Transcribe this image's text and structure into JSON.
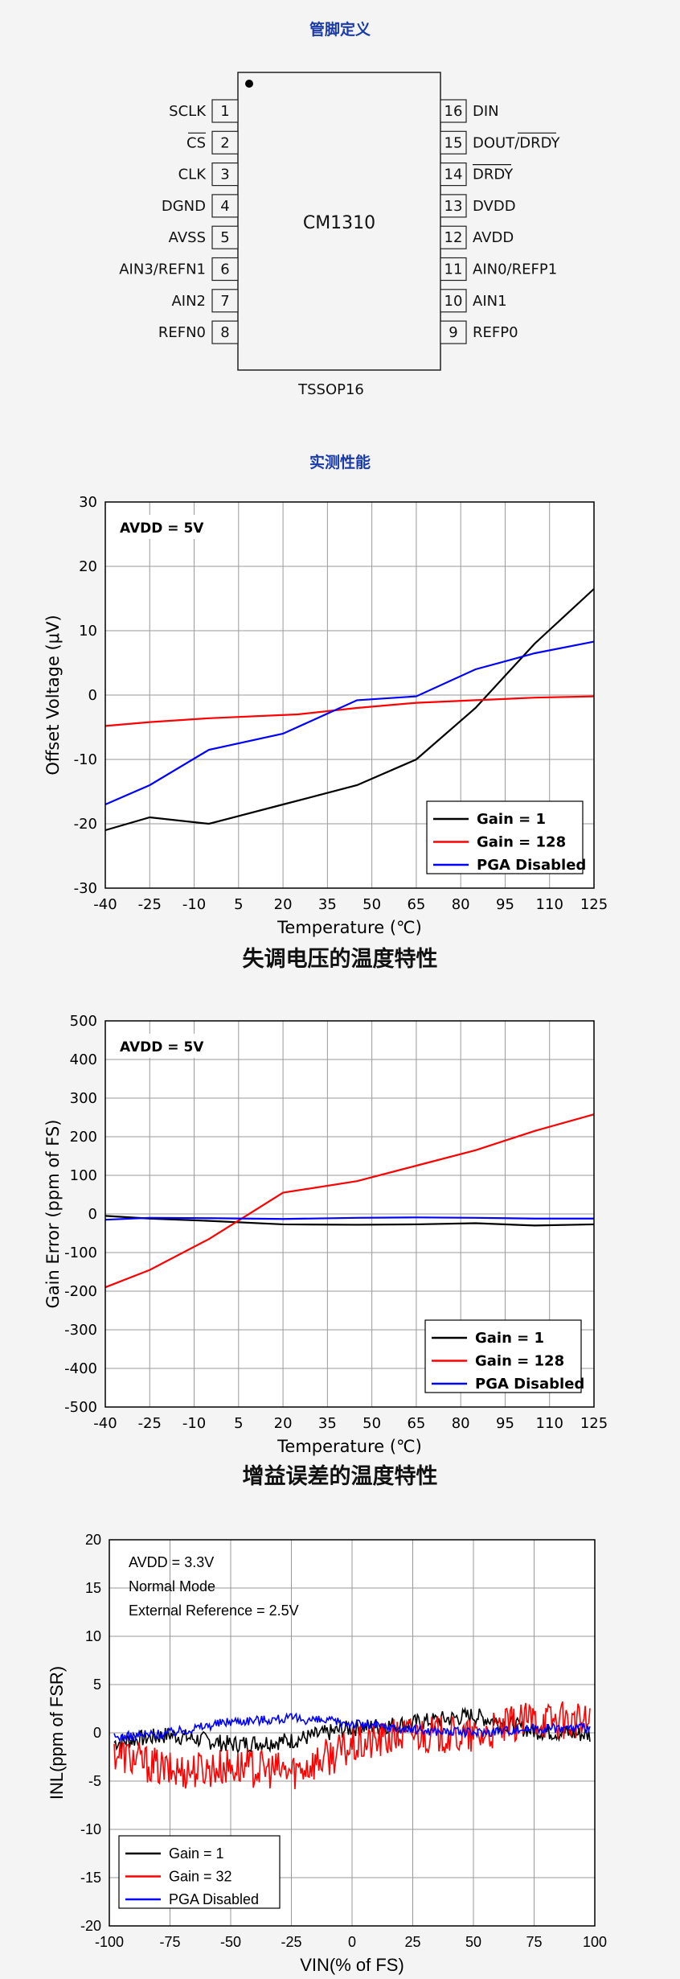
{
  "pinout": {
    "section_title": "管脚定义",
    "chip_name": "CM1310",
    "package": "TSSOP16",
    "left_pins": [
      {
        "num": "1",
        "label": "SCLK",
        "overline": false
      },
      {
        "num": "2",
        "label": "CS",
        "overline": true
      },
      {
        "num": "3",
        "label": "CLK",
        "overline": false
      },
      {
        "num": "4",
        "label": "DGND",
        "overline": false
      },
      {
        "num": "5",
        "label": "AVSS",
        "overline": false
      },
      {
        "num": "6",
        "label": "AIN3/REFN1",
        "overline": false
      },
      {
        "num": "7",
        "label": "AIN2",
        "overline": false
      },
      {
        "num": "8",
        "label": "REFN0",
        "overline": false
      }
    ],
    "right_pins": [
      {
        "num": "16",
        "label": "DIN",
        "overline_part": ""
      },
      {
        "num": "15",
        "label": "DOUT/",
        "overline_part": "DRDY"
      },
      {
        "num": "14",
        "label": "",
        "overline_part": "DRDY"
      },
      {
        "num": "13",
        "label": "DVDD",
        "overline_part": ""
      },
      {
        "num": "12",
        "label": "AVDD",
        "overline_part": ""
      },
      {
        "num": "11",
        "label": "AIN0/REFP1",
        "overline_part": ""
      },
      {
        "num": "10",
        "label": "AIN1",
        "overline_part": ""
      },
      {
        "num": "9",
        "label": "REFP0",
        "overline_part": ""
      }
    ]
  },
  "performance_title": "实测性能",
  "chart_data": [
    {
      "type": "line",
      "caption": "失调电压的温度特性",
      "annotation": "AVDD = 5V",
      "xlabel": "Temperature (℃)",
      "ylabel": "Offset Voltage (μV)",
      "xlim": [
        -40,
        125
      ],
      "ylim": [
        -30,
        30
      ],
      "xticks": [
        -40,
        -25,
        -10,
        5,
        20,
        35,
        50,
        65,
        80,
        95,
        110,
        125
      ],
      "yticks": [
        30,
        20,
        10,
        0,
        -10,
        -20,
        -30
      ],
      "grid": true,
      "legend_position": "bottom-right",
      "series": [
        {
          "name": "Gain = 1",
          "color": "#000000",
          "x": [
            -40,
            -25,
            -5,
            20,
            45,
            65,
            85,
            105,
            125
          ],
          "y": [
            -21,
            -19,
            -20,
            -17,
            -14,
            -10,
            -2,
            8,
            16.5
          ]
        },
        {
          "name": "Gain = 128",
          "color": "#ff0000",
          "x": [
            -40,
            -25,
            -5,
            25,
            45,
            65,
            85,
            105,
            125
          ],
          "y": [
            -4.8,
            -4.2,
            -3.6,
            -3,
            -2,
            -1.2,
            -0.8,
            -0.4,
            -0.2
          ]
        },
        {
          "name": "PGA Disabled",
          "color": "#0000ff",
          "x": [
            -40,
            -25,
            -5,
            20,
            45,
            65,
            85,
            105,
            125
          ],
          "y": [
            -17,
            -14,
            -8.5,
            -6,
            -0.8,
            -0.2,
            4,
            6.5,
            8.3
          ]
        }
      ]
    },
    {
      "type": "line",
      "caption": "增益误差的温度特性",
      "annotation": "AVDD = 5V",
      "xlabel": "Temperature (℃)",
      "ylabel": "Gain Error (ppm of FS)",
      "xlim": [
        -40,
        125
      ],
      "ylim": [
        -500,
        500
      ],
      "xticks": [
        -40,
        -25,
        -10,
        5,
        20,
        35,
        50,
        65,
        80,
        95,
        110,
        125
      ],
      "yticks": [
        500,
        400,
        300,
        200,
        100,
        0,
        -100,
        -200,
        -300,
        -400,
        -500
      ],
      "grid": true,
      "legend_position": "bottom-right",
      "series": [
        {
          "name": "Gain = 1",
          "color": "#000000",
          "x": [
            -40,
            -25,
            -5,
            20,
            45,
            65,
            85,
            105,
            125
          ],
          "y": [
            -5,
            -12,
            -18,
            -27,
            -28,
            -27,
            -24,
            -30,
            -27
          ]
        },
        {
          "name": "Gain = 128",
          "color": "#ff0000",
          "x": [
            -40,
            -25,
            -5,
            20,
            45,
            65,
            85,
            105,
            125
          ],
          "y": [
            -190,
            -145,
            -65,
            55,
            85,
            125,
            165,
            215,
            258
          ]
        },
        {
          "name": "PGA Disabled",
          "color": "#0000ff",
          "x": [
            -40,
            -25,
            -5,
            20,
            45,
            65,
            85,
            105,
            125
          ],
          "y": [
            -15,
            -10,
            -11,
            -13,
            -10,
            -9,
            -10,
            -12,
            -12
          ]
        }
      ]
    },
    {
      "type": "line",
      "caption": "",
      "annotations": [
        "AVDD = 3.3V",
        "Normal Mode",
        "External Reference = 2.5V"
      ],
      "xlabel": "VIN(% of FS)",
      "ylabel": "INL(ppm of FSR)",
      "xlim": [
        -100,
        100
      ],
      "ylim": [
        -20,
        20
      ],
      "xticks": [
        -100,
        -75,
        -50,
        -25,
        0,
        25,
        50,
        75,
        100
      ],
      "yticks": [
        20,
        15,
        10,
        5,
        0,
        -5,
        -10,
        -15,
        -20
      ],
      "grid": true,
      "legend_position": "bottom-left",
      "series": [
        {
          "name": "Gain = 1",
          "color": "#000000",
          "noise": 0.9,
          "x": [
            -98,
            -75,
            -50,
            -25,
            0,
            25,
            50,
            75,
            98
          ],
          "y": [
            -1,
            -0.2,
            -1.2,
            -0.8,
            0.5,
            1,
            1.8,
            0.2,
            -0.2
          ]
        },
        {
          "name": "Gain = 32",
          "color": "#ff0000",
          "noise": 2.0,
          "x": [
            -98,
            -75,
            -50,
            -25,
            0,
            25,
            50,
            75,
            98
          ],
          "y": [
            -2,
            -4,
            -3.5,
            -4,
            -1.5,
            0,
            -0.5,
            1.5,
            1
          ]
        },
        {
          "name": "PGA Disabled",
          "color": "#0000ff",
          "noise": 0.5,
          "x": [
            -98,
            -75,
            -50,
            -25,
            0,
            25,
            50,
            75,
            98
          ],
          "y": [
            -0.5,
            0,
            1.2,
            1.5,
            1,
            0.3,
            0,
            0.5,
            0.5
          ]
        }
      ]
    }
  ]
}
